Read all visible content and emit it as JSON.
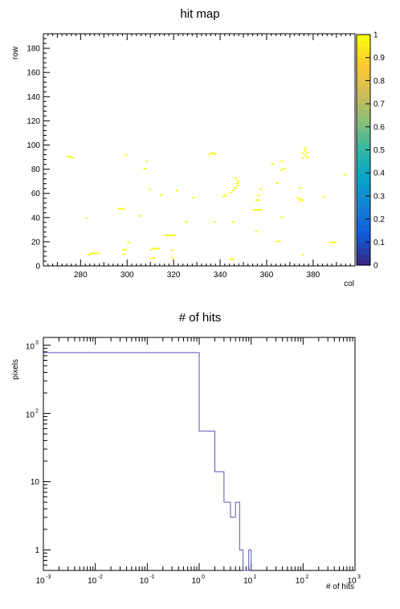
{
  "chart_data": [
    {
      "type": "heatmap",
      "title": "hit map",
      "xlabel": "col",
      "ylabel": "row",
      "xlim": [
        264,
        398
      ],
      "ylim": [
        0,
        192
      ],
      "xticks": [
        280,
        300,
        320,
        340,
        360,
        380
      ],
      "yticks": [
        0,
        20,
        40,
        60,
        80,
        100,
        120,
        140,
        160,
        180
      ],
      "colorbar": {
        "range": [
          0,
          1
        ],
        "ticks": [
          "0",
          "0.1",
          "0.2",
          "0.3",
          "0.4",
          "0.5",
          "0.6",
          "0.7",
          "0.8",
          "0.9",
          "1"
        ],
        "colors": [
          "#352a87",
          "#0f5cdd",
          "#1481d6",
          "#06a4ca",
          "#2eb7a4",
          "#87bf77",
          "#d1bb59",
          "#fec832",
          "#f9fb0e"
        ]
      },
      "hit_color": "#f9fb0e",
      "hit_value": 1,
      "hits": [
        [
          274,
          90
        ],
        [
          275,
          90
        ],
        [
          276,
          89
        ],
        [
          299,
          91
        ],
        [
          308,
          86
        ],
        [
          307,
          80
        ],
        [
          336,
          93
        ],
        [
          337,
          93
        ],
        [
          335,
          92
        ],
        [
          337,
          92
        ],
        [
          376,
          97
        ],
        [
          376,
          95
        ],
        [
          375,
          93
        ],
        [
          377,
          93
        ],
        [
          376,
          91
        ],
        [
          375,
          89
        ],
        [
          377,
          89
        ],
        [
          366,
          86
        ],
        [
          367,
          80
        ],
        [
          366,
          79
        ],
        [
          362,
          84
        ],
        [
          393,
          75
        ],
        [
          346,
          72
        ],
        [
          347,
          70
        ],
        [
          347,
          68
        ],
        [
          347,
          66
        ],
        [
          346,
          64
        ],
        [
          345,
          62
        ],
        [
          344,
          60
        ],
        [
          342,
          58
        ],
        [
          341,
          57
        ],
        [
          364,
          68
        ],
        [
          357,
          63
        ],
        [
          374,
          64
        ],
        [
          309,
          63
        ],
        [
          321,
          62
        ],
        [
          314,
          58
        ],
        [
          328,
          56
        ],
        [
          356,
          58
        ],
        [
          373,
          56
        ],
        [
          374,
          55
        ],
        [
          375,
          54
        ],
        [
          374,
          53
        ],
        [
          384,
          57
        ],
        [
          355,
          54
        ],
        [
          356,
          54
        ],
        [
          354,
          46
        ],
        [
          355,
          46
        ],
        [
          356,
          46
        ],
        [
          357,
          46
        ],
        [
          296,
          47
        ],
        [
          297,
          47
        ],
        [
          298,
          47
        ],
        [
          305,
          41
        ],
        [
          337,
          36
        ],
        [
          345,
          36
        ],
        [
          366,
          40
        ],
        [
          282,
          39
        ],
        [
          325,
          36
        ],
        [
          355,
          28
        ],
        [
          316,
          25
        ],
        [
          317,
          25
        ],
        [
          318,
          25
        ],
        [
          319,
          25
        ],
        [
          320,
          25
        ],
        [
          364,
          20
        ],
        [
          365,
          20
        ],
        [
          387,
          19
        ],
        [
          388,
          19
        ],
        [
          389,
          19
        ],
        [
          300,
          19
        ],
        [
          311,
          14
        ],
        [
          312,
          14
        ],
        [
          313,
          14
        ],
        [
          310,
          13
        ],
        [
          298,
          13
        ],
        [
          299,
          13
        ],
        [
          319,
          13
        ],
        [
          284,
          10
        ],
        [
          285,
          10
        ],
        [
          286,
          10
        ],
        [
          287,
          10
        ],
        [
          283,
          9
        ],
        [
          298,
          9
        ],
        [
          375,
          9
        ],
        [
          310,
          6
        ],
        [
          311,
          6
        ],
        [
          319,
          6
        ],
        [
          344,
          5
        ],
        [
          345,
          5
        ]
      ]
    },
    {
      "type": "line",
      "step": true,
      "title": "# of hits",
      "xlabel": "# of hits",
      "ylabel": "pixels",
      "xscale": "log",
      "yscale": "log",
      "xlim": [
        0.001,
        1000
      ],
      "ylim": [
        0.5,
        1300
      ],
      "xticks": [
        0.001,
        0.01,
        0.1,
        1,
        10,
        100,
        1000
      ],
      "xtick_base": "10",
      "xtick_exponents": [
        "-3",
        "-2",
        "-1",
        "0",
        "1",
        "2",
        "3"
      ],
      "ytick_values": [
        1,
        10,
        100,
        1000
      ],
      "ytick_labels": [
        "1",
        "10",
        "",
        ""
      ],
      "ytick_base": "10",
      "ytick_exponents": [
        "",
        "",
        "2",
        "3"
      ],
      "line_color": "#5555bb",
      "bins": [
        {
          "lo": 0.001,
          "hi": 1,
          "value": 780
        },
        {
          "lo": 1,
          "hi": 2,
          "value": 55
        },
        {
          "lo": 2,
          "hi": 3,
          "value": 14
        },
        {
          "lo": 3,
          "hi": 4,
          "value": 5
        },
        {
          "lo": 4,
          "hi": 5,
          "value": 3
        },
        {
          "lo": 5,
          "hi": 6,
          "value": 5
        },
        {
          "lo": 6,
          "hi": 7,
          "value": 1
        },
        {
          "lo": 7,
          "hi": 9,
          "value": 0
        },
        {
          "lo": 9,
          "hi": 10,
          "value": 1
        }
      ]
    }
  ]
}
